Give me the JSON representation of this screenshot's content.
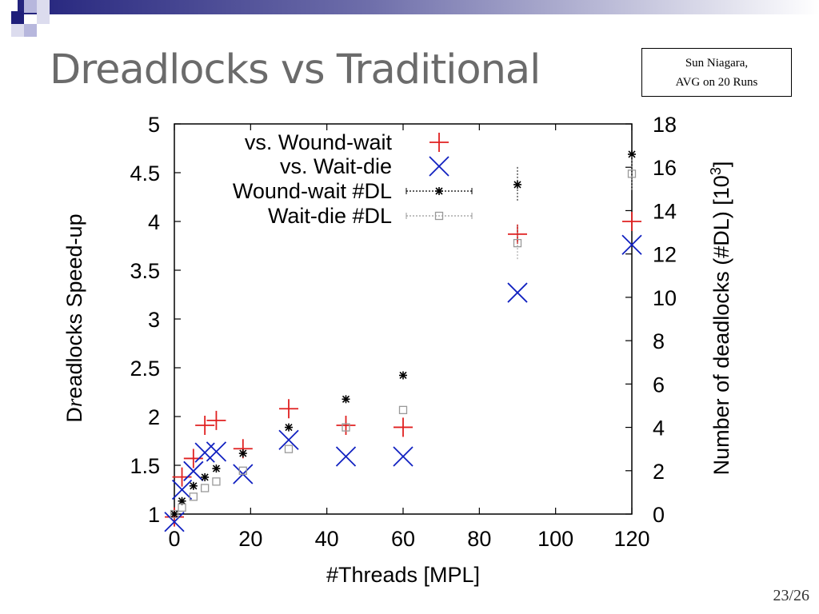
{
  "slide": {
    "title": "Dreadlocks vs Traditional",
    "note_line1": "Sun Niagara,",
    "note_line2": "AVG on 20 Runs",
    "page_number": "23/26",
    "colors": {
      "title": "#6b6b6b",
      "deco_dark": "#1f1f7a",
      "deco_light": "#b7b7dd"
    }
  },
  "chart_data": {
    "type": "scatter",
    "xlabel": "#Threads [MPL]",
    "ylabel_left_prefix": "D",
    "ylabel_left_italic": "r",
    "ylabel_left_suffix": "eadlocks Speed-up",
    "ylabel_right": "Number of deadlocks (#DL) [10",
    "ylabel_right_exp": "3",
    "ylabel_right_close": "]",
    "xlim": [
      0,
      120
    ],
    "ylim_left": [
      1,
      5
    ],
    "ylim_right": [
      0,
      18
    ],
    "xticks": [
      0,
      20,
      40,
      60,
      80,
      100,
      120
    ],
    "yticks_left": [
      1,
      1.5,
      2,
      2.5,
      3,
      3.5,
      4,
      4.5,
      5
    ],
    "yticks_left_labels": [
      "1",
      "1.5",
      "2",
      "2.5",
      "3",
      "3.5",
      "4",
      "4.5",
      "5"
    ],
    "yticks_right": [
      0,
      2,
      4,
      6,
      8,
      10,
      12,
      14,
      16,
      18
    ],
    "grid": false,
    "legend_position": "top-left",
    "series": [
      {
        "name": "vs. Wound-wait",
        "axis": "left",
        "marker": "plus",
        "color": "#e02020",
        "x": [
          0,
          2,
          5,
          8,
          11,
          18,
          30,
          45,
          60,
          90,
          120
        ],
        "y": [
          0.97,
          1.38,
          1.57,
          1.91,
          1.96,
          1.67,
          2.08,
          1.91,
          1.89,
          3.87,
          4.0
        ]
      },
      {
        "name": "vs. Wait-die",
        "axis": "left",
        "marker": "cross",
        "color": "#1020c0",
        "x": [
          0,
          2,
          5,
          8,
          11,
          18,
          30,
          45,
          60,
          90,
          120
        ],
        "y": [
          0.92,
          1.25,
          1.44,
          1.63,
          1.64,
          1.41,
          1.76,
          1.59,
          1.59,
          3.27,
          3.76
        ]
      },
      {
        "name": "Wound-wait #DL",
        "axis": "right",
        "marker": "star",
        "color": "#000000",
        "x": [
          0,
          2,
          5,
          8,
          11,
          18,
          30,
          45,
          60,
          90,
          120
        ],
        "y": [
          0.0,
          0.6,
          1.3,
          1.7,
          2.1,
          2.8,
          4.0,
          5.3,
          6.4,
          15.2,
          16.6
        ]
      },
      {
        "name": "Wait-die #DL",
        "axis": "right",
        "marker": "square",
        "color": "#999999",
        "x": [
          0,
          2,
          5,
          8,
          11,
          18,
          30,
          45,
          60,
          90,
          120
        ],
        "y": [
          0.0,
          0.3,
          0.8,
          1.2,
          1.5,
          2.0,
          3.0,
          4.0,
          4.8,
          12.5,
          15.7
        ]
      }
    ]
  }
}
